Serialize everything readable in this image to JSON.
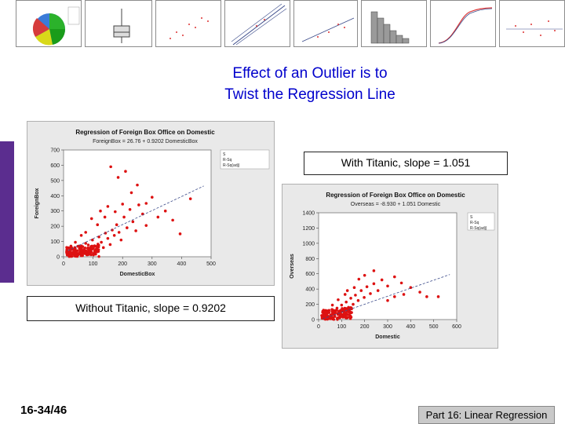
{
  "slide": {
    "title_line1": "Effect of an Outlier is to",
    "title_line2": "Twist the Regression Line",
    "title_color": "#0000cc",
    "page_number": "16-34/46",
    "section": "Part 16: Linear Regression"
  },
  "callouts": {
    "with_titanic": "With Titanic, slope = 1.051",
    "without_titanic": "Without Titanic, slope = 0.9202"
  },
  "chart_data": [
    {
      "type": "scatter",
      "title": "Regression of Foreign Box Office on Domestic",
      "subtitle": "ForeignBox = 26.76 + 0.9202 DomesticBox",
      "xlabel": "DomesticBox",
      "ylabel": "ForeignBox",
      "xlim": [
        0,
        500
      ],
      "ylim": [
        0,
        700
      ],
      "xticks": [
        "0",
        "100",
        "200",
        "300",
        "400",
        "500"
      ],
      "yticks": [
        "0",
        "100",
        "200",
        "300",
        "400",
        "500",
        "600",
        "700"
      ],
      "regression": {
        "intercept": 26.76,
        "slope": 0.9202
      },
      "stats_labels": [
        "S",
        "R-Sq",
        "R-Sq(adj)"
      ],
      "point_color": "#dd1111",
      "line_color": "#3b4b8a",
      "grid": false,
      "points": [
        [
          14,
          32
        ],
        [
          22,
          45
        ],
        [
          30,
          18
        ],
        [
          38,
          60
        ],
        [
          45,
          28
        ],
        [
          52,
          70
        ],
        [
          60,
          40
        ],
        [
          68,
          22
        ],
        [
          75,
          88
        ],
        [
          82,
          55
        ],
        [
          90,
          35
        ],
        [
          98,
          110
        ],
        [
          105,
          72
        ],
        [
          112,
          48
        ],
        [
          120,
          130
        ],
        [
          128,
          95
        ],
        [
          135,
          60
        ],
        [
          142,
          155
        ],
        [
          150,
          120
        ],
        [
          158,
          80
        ],
        [
          165,
          175
        ],
        [
          172,
          140
        ],
        [
          180,
          210
        ],
        [
          188,
          160
        ],
        [
          195,
          110
        ],
        [
          205,
          260
        ],
        [
          215,
          190
        ],
        [
          225,
          310
        ],
        [
          235,
          230
        ],
        [
          245,
          170
        ],
        [
          255,
          340
        ],
        [
          268,
          280
        ],
        [
          280,
          205
        ],
        [
          300,
          390
        ],
        [
          320,
          260
        ],
        [
          345,
          300
        ],
        [
          370,
          240
        ],
        [
          395,
          150
        ],
        [
          430,
          380
        ],
        [
          160,
          590
        ],
        [
          185,
          520
        ],
        [
          210,
          560
        ],
        [
          250,
          470
        ],
        [
          95,
          250
        ],
        [
          125,
          300
        ],
        [
          150,
          330
        ],
        [
          60,
          140
        ],
        [
          40,
          95
        ],
        [
          25,
          70
        ],
        [
          75,
          160
        ],
        [
          115,
          210
        ],
        [
          140,
          260
        ],
        [
          175,
          295
        ],
        [
          200,
          345
        ],
        [
          230,
          420
        ],
        [
          280,
          350
        ]
      ]
    },
    {
      "type": "scatter",
      "title": "Regression of Foreign Box Office on Domestic",
      "subtitle": "Overseas = -8.930 + 1.051 Domestic",
      "xlabel": "Domestic",
      "ylabel": "Overseas",
      "xlim": [
        0,
        600
      ],
      "ylim": [
        0,
        1400
      ],
      "xticks": [
        "0",
        "100",
        "200",
        "300",
        "400",
        "500",
        "600"
      ],
      "yticks": [
        "0",
        "200",
        "400",
        "600",
        "800",
        "1000",
        "1200",
        "1400"
      ],
      "regression": {
        "intercept": -8.93,
        "slope": 1.051
      },
      "stats_labels": [
        "S",
        "R-Sq",
        "R-Sq(adj)"
      ],
      "point_color": "#dd1111",
      "line_color": "#3b4b8a",
      "grid": false,
      "points": [
        [
          18,
          40
        ],
        [
          26,
          70
        ],
        [
          35,
          25
        ],
        [
          44,
          95
        ],
        [
          52,
          60
        ],
        [
          60,
          120
        ],
        [
          70,
          45
        ],
        [
          80,
          150
        ],
        [
          90,
          90
        ],
        [
          100,
          190
        ],
        [
          110,
          130
        ],
        [
          120,
          230
        ],
        [
          130,
          160
        ],
        [
          140,
          280
        ],
        [
          150,
          200
        ],
        [
          160,
          320
        ],
        [
          172,
          250
        ],
        [
          185,
          380
        ],
        [
          198,
          290
        ],
        [
          210,
          430
        ],
        [
          225,
          340
        ],
        [
          240,
          470
        ],
        [
          258,
          380
        ],
        [
          275,
          520
        ],
        [
          300,
          440
        ],
        [
          330,
          560
        ],
        [
          360,
          480
        ],
        [
          400,
          420
        ],
        [
          440,
          360
        ],
        [
          470,
          300
        ],
        [
          200,
          580
        ],
        [
          240,
          640
        ],
        [
          175,
          530
        ],
        [
          115,
          330
        ],
        [
          85,
          260
        ],
        [
          60,
          190
        ],
        [
          300,
          250
        ],
        [
          330,
          300
        ],
        [
          155,
          420
        ],
        [
          125,
          380
        ],
        [
          520,
          300
        ],
        [
          370,
          330
        ]
      ]
    }
  ]
}
